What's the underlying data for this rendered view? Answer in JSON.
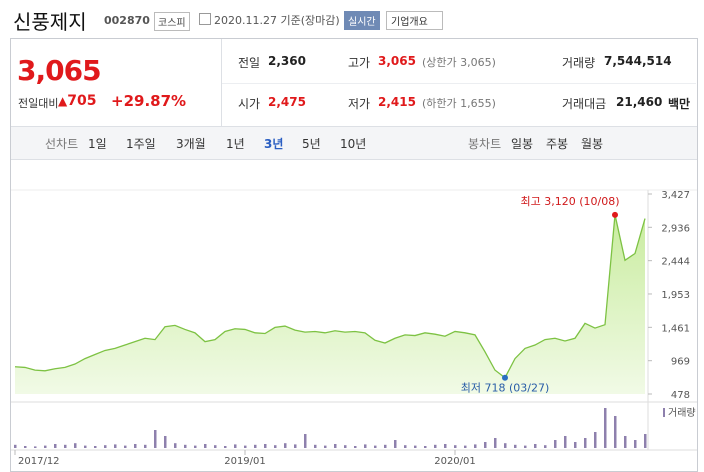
{
  "header": {
    "name": "신풍제지",
    "code": "002870",
    "market": "코스피",
    "date": "2020.11.27 기준(장마감)",
    "realtime": "실시간",
    "company_info": "기업개요"
  },
  "quote": {
    "price": "3,065",
    "change_label": "전일대비",
    "change": "705",
    "change_pct": "+29.87%",
    "items": [
      {
        "label": "전일",
        "value": "2,360"
      },
      {
        "label": "고가",
        "value": "3,065",
        "extra": "(상한가 3,065)"
      },
      {
        "label": "거래량",
        "value": "7,544,514"
      },
      {
        "label": "시가",
        "value": "2,475"
      },
      {
        "label": "저가",
        "value": "2,415",
        "extra": "(하한가 1,655)"
      },
      {
        "label": "거래대금",
        "value": "21,460",
        "unit": "백만"
      }
    ]
  },
  "tabs": {
    "line_label": "선차트",
    "line": [
      "1일",
      "1주일",
      "3개월",
      "1년",
      "3년",
      "5년",
      "10년"
    ],
    "selected": "3년",
    "candle_label": "봉차트",
    "candle": [
      "일봉",
      "주봉",
      "월봉"
    ]
  },
  "chart_data": [
    {
      "type": "line",
      "color": "#7dc243",
      "max_label": "최고 3,120 (10/08)",
      "min_label": "최저 718 (03/27)",
      "categories": [
        "2017/12",
        null,
        null,
        null,
        null,
        null,
        null,
        null,
        null,
        null,
        null,
        null,
        null,
        null,
        null,
        null,
        null,
        null,
        null,
        null,
        null,
        null,
        null,
        "2019/01",
        null,
        null,
        null,
        null,
        null,
        null,
        null,
        null,
        null,
        null,
        null,
        null,
        null,
        null,
        null,
        null,
        null,
        null,
        null,
        null,
        "2020/01",
        null,
        null,
        null,
        null,
        null,
        null,
        null,
        null,
        null,
        null,
        null,
        null,
        null,
        null,
        null,
        null,
        null,
        null,
        null
      ],
      "values": [
        880,
        870,
        830,
        820,
        850,
        870,
        920,
        1000,
        1060,
        1120,
        1150,
        1200,
        1250,
        1300,
        1280,
        1470,
        1490,
        1430,
        1380,
        1250,
        1280,
        1400,
        1440,
        1430,
        1380,
        1370,
        1460,
        1480,
        1420,
        1390,
        1400,
        1380,
        1410,
        1390,
        1400,
        1380,
        1270,
        1230,
        1300,
        1350,
        1340,
        1380,
        1360,
        1330,
        1400,
        1380,
        1350,
        1100,
        830,
        718,
        1000,
        1150,
        1200,
        1280,
        1300,
        1260,
        1300,
        1520,
        1450,
        1500,
        3120,
        2450,
        2550,
        3065
      ],
      "ylim": [
        478,
        3427
      ],
      "yticks": [
        {
          "value": 3427,
          "label": "3,427"
        },
        {
          "value": 2936,
          "label": "2,936"
        },
        {
          "value": 2444,
          "label": "2,444"
        },
        {
          "value": 1953,
          "label": "1,953"
        },
        {
          "value": 1461,
          "label": "1,461"
        },
        969,
        478
      ],
      "grid": false
    },
    {
      "type": "bar",
      "title": "거래량",
      "color": "#8e80ad",
      "values": [
        8,
        5,
        4,
        6,
        10,
        8,
        12,
        6,
        5,
        7,
        9,
        6,
        10,
        8,
        45,
        30,
        12,
        8,
        6,
        10,
        7,
        5,
        9,
        6,
        8,
        10,
        7,
        12,
        9,
        35,
        8,
        6,
        10,
        7,
        5,
        9,
        6,
        8,
        20,
        7,
        6,
        5,
        8,
        10,
        7,
        6,
        9,
        15,
        25,
        12,
        8,
        6,
        10,
        7,
        20,
        30,
        15,
        25,
        40,
        100,
        80,
        30,
        20,
        35
      ]
    }
  ]
}
